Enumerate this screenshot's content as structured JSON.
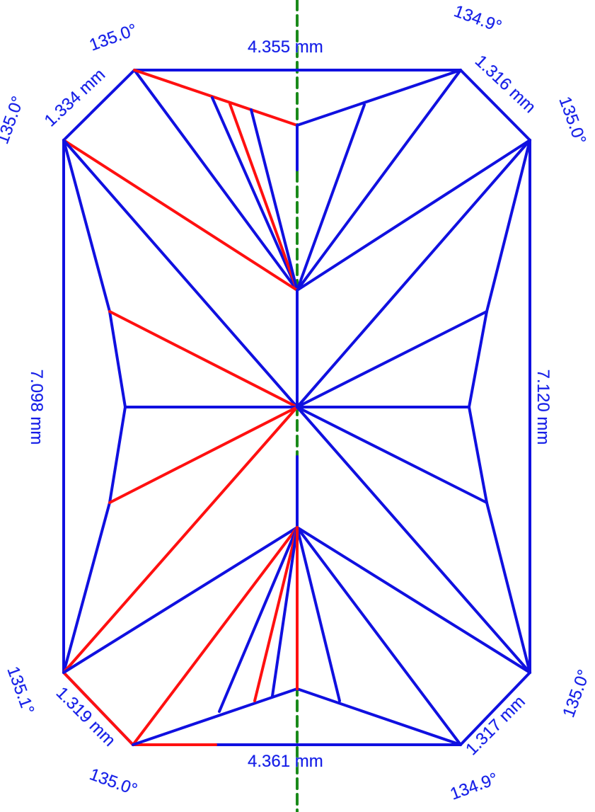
{
  "diagram": {
    "colors": {
      "outline": "#1010e0",
      "highlight": "#ff1010",
      "axis": "#1a8a1a",
      "label": "#1a1ae6"
    },
    "labels": {
      "top_width": "4.355 mm",
      "bottom_width": "4.361 mm",
      "left_height": "7.098 mm",
      "right_height": "7.120 mm",
      "top_left_corner": "1.334 mm",
      "top_right_corner": "1.316 mm",
      "bottom_left_corner": "1.319 mm",
      "bottom_right_corner": "1.317 mm",
      "angle_top_left_upper": "135.0°",
      "angle_top_left_lower": "135.0°",
      "angle_top_right_upper": "134.9°",
      "angle_top_right_lower": "135.0°",
      "angle_bottom_left_upper": "135.1°",
      "angle_bottom_left_lower": "135.0°",
      "angle_bottom_right_upper": "135.0°",
      "angle_bottom_right_lower": "134.9°"
    }
  }
}
